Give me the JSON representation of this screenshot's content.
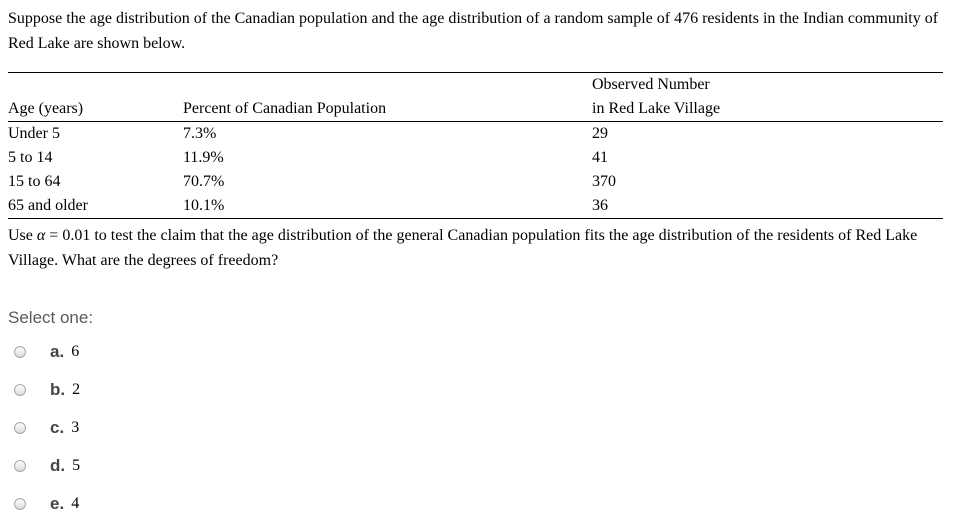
{
  "question": {
    "intro": "Suppose the age distribution of the Canadian population and the age distribution of a random sample of 476 residents in the Indian community of Red Lake are shown below.",
    "alpha_pre": "Use ",
    "alpha_symbol": "α",
    "alpha_post": " = 0.01 to test the claim that the age distribution of the general Canadian population fits the age distribution of the residents of Red Lake Village. What are the degrees of freedom?"
  },
  "table": {
    "headers": {
      "age": "Age (years)",
      "percent": "Percent of Canadian Population",
      "observed_line1": "Observed Number",
      "observed_line2": "in Red Lake Village"
    },
    "rows": [
      {
        "age": "Under 5",
        "percent": "7.3%",
        "observed": "29"
      },
      {
        "age": "5 to 14",
        "percent": "11.9%",
        "observed": "41"
      },
      {
        "age": "15 to 64",
        "percent": "70.7%",
        "observed": "370"
      },
      {
        "age": "65 and older",
        "percent": "10.1%",
        "observed": "36"
      }
    ]
  },
  "answer": {
    "prompt": "Select one:",
    "options": [
      {
        "letter": "a.",
        "value": "6"
      },
      {
        "letter": "b.",
        "value": "2"
      },
      {
        "letter": "c.",
        "value": "3"
      },
      {
        "letter": "d.",
        "value": "5"
      },
      {
        "letter": "e.",
        "value": "4"
      }
    ]
  },
  "colors": {
    "text": "#000000",
    "muted": "#5a5a5a",
    "option_letter": "#454545",
    "rule": "#000000",
    "radio_border": "#a9a9a9"
  }
}
